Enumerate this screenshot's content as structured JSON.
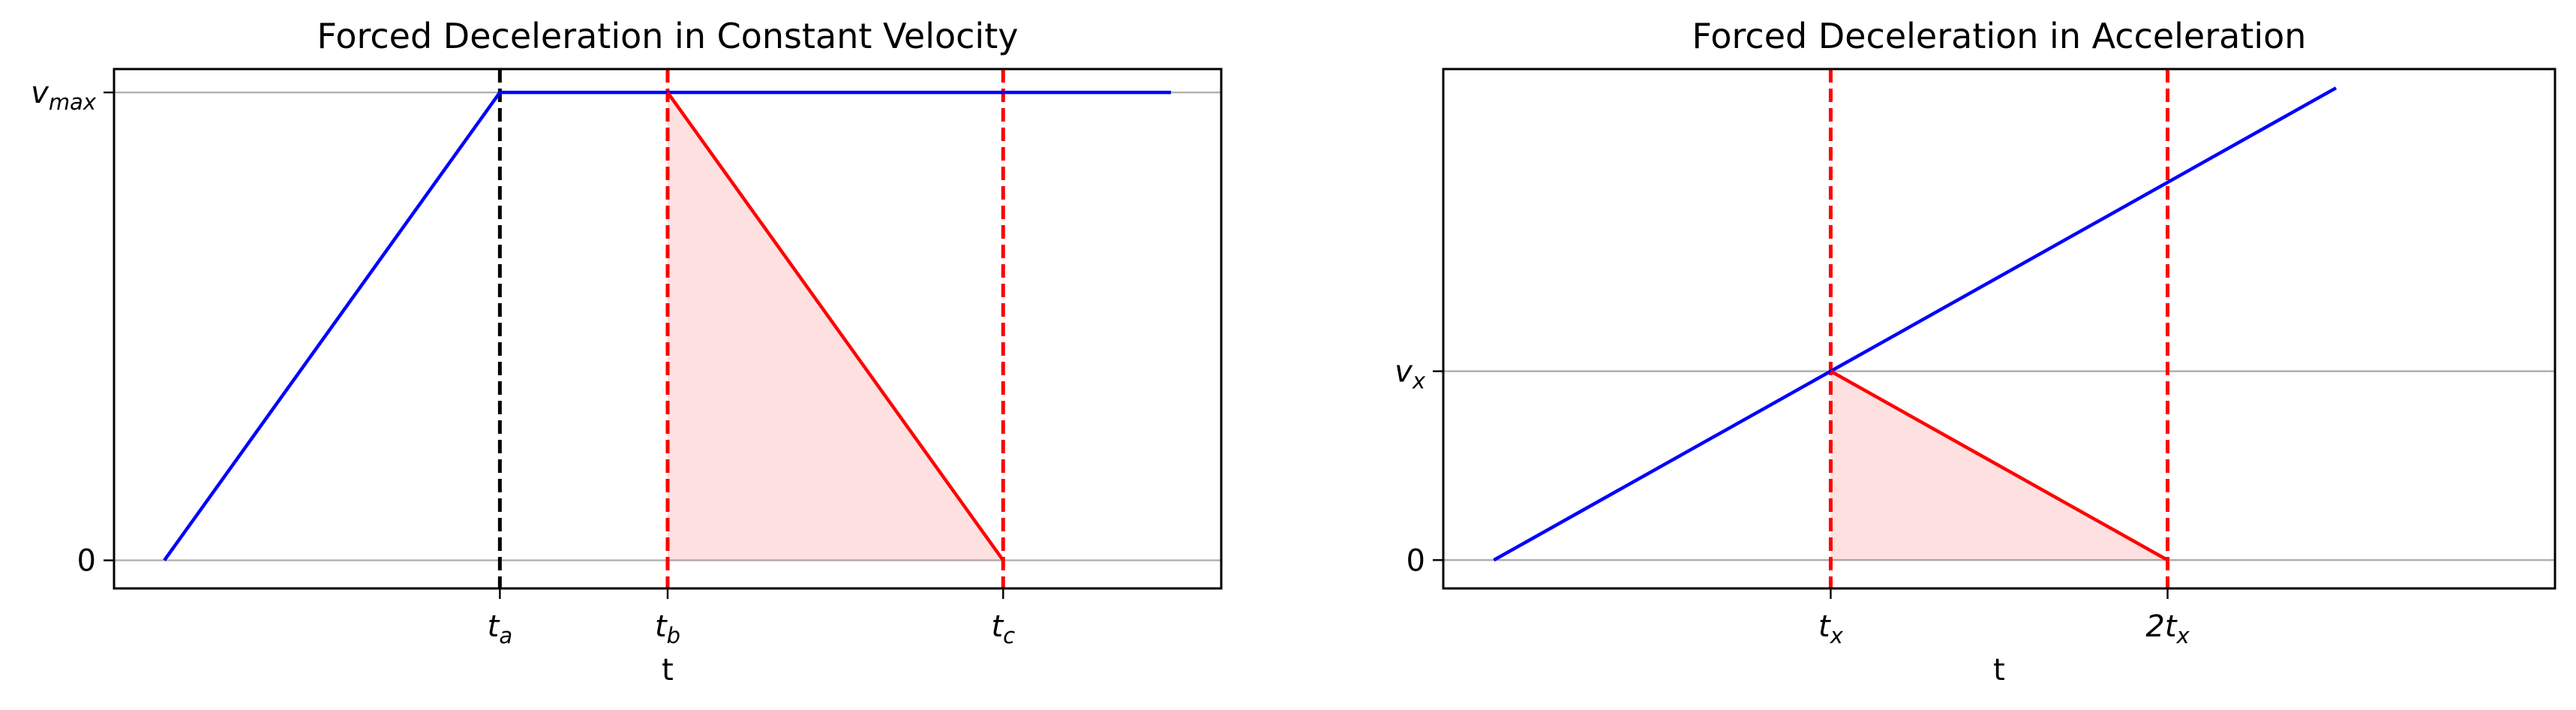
{
  "chart_data": [
    {
      "type": "line",
      "title": "Forced Deceleration in Constant Velocity",
      "xlabel": "t",
      "ylabel": "",
      "xlim": [
        -0.3,
        6.3
      ],
      "ylim": [
        -0.06,
        1.05
      ],
      "grid": "horizontal",
      "xticks": [
        {
          "value": 2.0,
          "main": "t",
          "sub": "a"
        },
        {
          "value": 3.0,
          "main": "t",
          "sub": "b"
        },
        {
          "value": 5.0,
          "main": "t",
          "sub": "c"
        }
      ],
      "yticks": [
        {
          "value": 0,
          "main": "0",
          "sub": ""
        },
        {
          "value": 1,
          "main": "v",
          "sub": "max"
        }
      ],
      "vlines": [
        {
          "x": 2.0,
          "color": "#000000",
          "style": "dashed"
        },
        {
          "x": 3.0,
          "color": "#ff0000",
          "style": "dashed"
        },
        {
          "x": 5.0,
          "color": "#ff0000",
          "style": "dashed"
        }
      ],
      "series": [
        {
          "color": "#0000ff",
          "points": [
            [
              0,
              0
            ],
            [
              2,
              1
            ],
            [
              6,
              1
            ]
          ]
        },
        {
          "color": "#ff0000",
          "points": [
            [
              3,
              1
            ],
            [
              5,
              0
            ]
          ]
        }
      ],
      "fill": {
        "color": "#ff0000",
        "opacity": 0.12,
        "points": [
          [
            3,
            1
          ],
          [
            5,
            0
          ],
          [
            3,
            0
          ]
        ]
      }
    },
    {
      "type": "line",
      "title": "Forced Deceleration in Acceleration",
      "xlabel": "t",
      "ylabel": "",
      "xlim": [
        -0.15,
        3.15
      ],
      "ylim": [
        -0.15,
        2.6
      ],
      "grid": "horizontal",
      "xticks": [
        {
          "value": 1.0,
          "main": "t",
          "sub": "x"
        },
        {
          "value": 2.0,
          "main": "2t",
          "sub": "x"
        }
      ],
      "yticks": [
        {
          "value": 0,
          "main": "0",
          "sub": ""
        },
        {
          "value": 1,
          "main": "v",
          "sub": "x"
        }
      ],
      "vlines": [
        {
          "x": 1.0,
          "color": "#ff0000",
          "style": "dashed"
        },
        {
          "x": 2.0,
          "color": "#ff0000",
          "style": "dashed"
        }
      ],
      "series": [
        {
          "color": "#0000ff",
          "points": [
            [
              0,
              0
            ],
            [
              2.5,
              2.5
            ]
          ]
        },
        {
          "color": "#ff0000",
          "points": [
            [
              1,
              1
            ],
            [
              2,
              0
            ]
          ]
        }
      ],
      "fill": {
        "color": "#ff0000",
        "opacity": 0.12,
        "points": [
          [
            1,
            1
          ],
          [
            2,
            0
          ],
          [
            1,
            0
          ]
        ]
      }
    }
  ]
}
